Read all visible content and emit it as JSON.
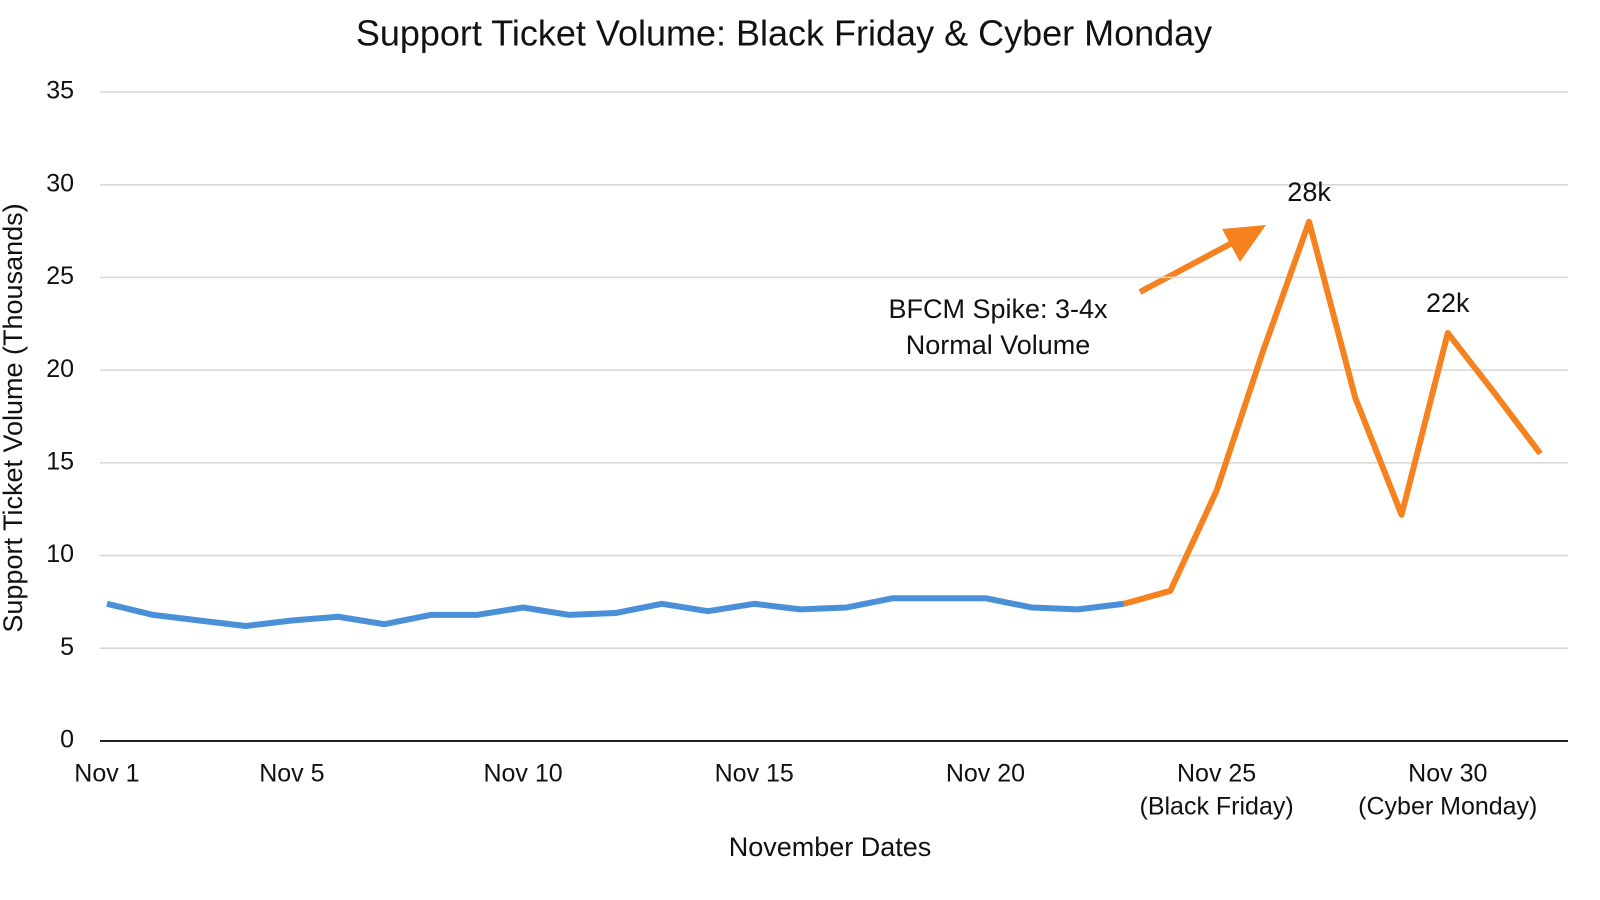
{
  "chart_data": {
    "type": "line",
    "title": "Support Ticket Volume: Black Friday & Cyber Monday",
    "x_label": "November Dates",
    "y_label": "Support Ticket Volume (Thousands)",
    "annotation": [
      "BFCM Spike: 3-4x",
      "Normal Volume"
    ],
    "x": [
      1,
      2,
      3,
      4,
      5,
      6,
      7,
      8,
      9,
      10,
      11,
      12,
      13,
      14,
      15,
      16,
      17,
      18,
      19,
      20,
      21,
      22,
      23,
      24,
      25,
      26,
      27,
      28,
      29,
      30,
      31,
      32
    ],
    "series": [
      {
        "color": "#4a90d9",
        "values": [
          7.4,
          6.8,
          6.5,
          6.2,
          6.5,
          6.7,
          6.3,
          6.8,
          6.8,
          7.2,
          6.8,
          6.9,
          7.4,
          7.0,
          7.4,
          7.1,
          7.2,
          7.7,
          7.7,
          7.7,
          7.2,
          7.1,
          7.4,
          null,
          null,
          null,
          null,
          null,
          null,
          null,
          null,
          null
        ]
      },
      {
        "color": "#f5821f",
        "values": [
          null,
          null,
          null,
          null,
          null,
          null,
          null,
          null,
          null,
          null,
          null,
          null,
          null,
          null,
          null,
          null,
          null,
          null,
          null,
          null,
          null,
          null,
          7.4,
          8.1,
          13.5,
          21,
          28,
          18.5,
          12.2,
          22,
          18.8,
          15.5
        ],
        "value_labels": [
          null,
          null,
          null,
          null,
          null,
          null,
          null,
          null,
          null,
          null,
          null,
          null,
          null,
          null,
          null,
          null,
          null,
          null,
          null,
          null,
          null,
          null,
          null,
          null,
          null,
          null,
          "28k",
          null,
          null,
          "22k",
          null,
          null
        ]
      }
    ],
    "xlim": [
      0.85,
      32.6
    ],
    "xticks": [
      {
        "value": 1,
        "label": "Nov 1"
      },
      {
        "value": 5,
        "label": "Nov 5"
      },
      {
        "value": 10,
        "label": "Nov 10"
      },
      {
        "value": 15,
        "label": "Nov 15"
      },
      {
        "value": 20,
        "label": "Nov 20"
      },
      {
        "value": 25,
        "label": [
          "Nov 25",
          "(Black Friday)"
        ]
      },
      {
        "value": 30,
        "label": [
          "Nov 30",
          "(Cyber Monday)"
        ]
      }
    ],
    "ylim": [
      0,
      35
    ],
    "yticks": [
      0,
      5,
      10,
      15,
      20,
      25,
      30,
      35
    ],
    "grid": true
  }
}
